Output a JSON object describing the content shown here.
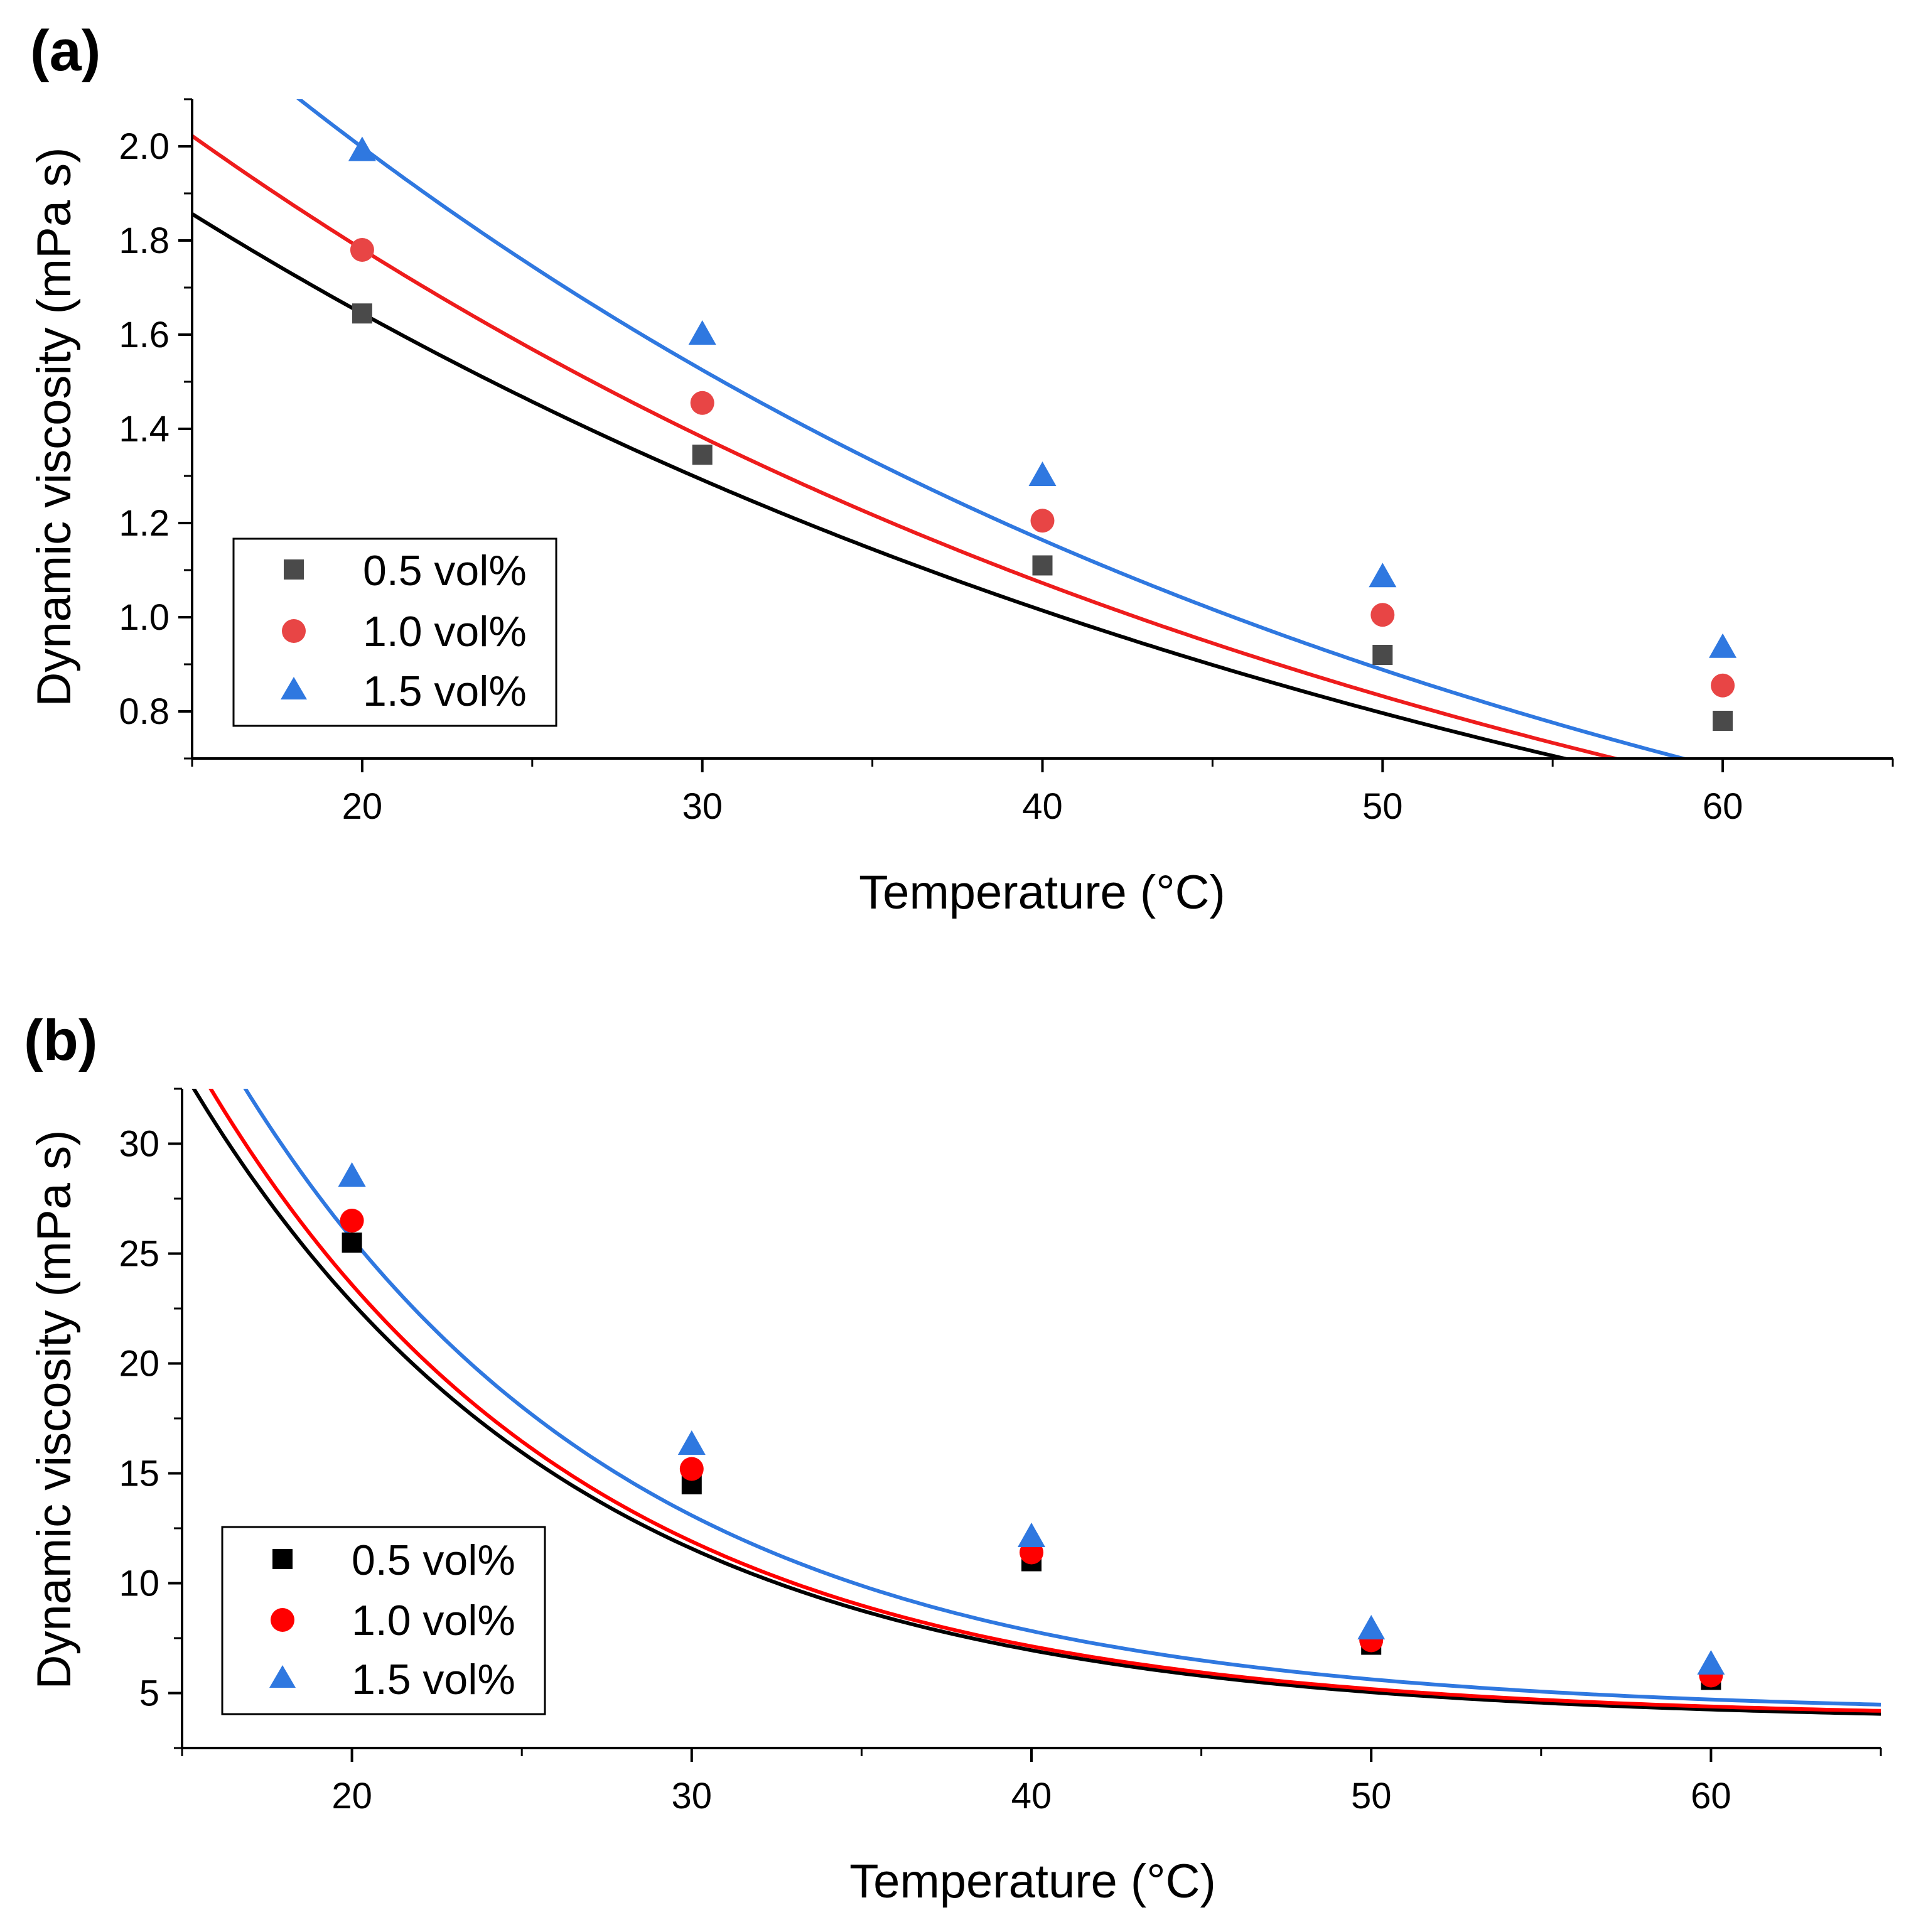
{
  "chart_data": [
    {
      "panel": "(a)",
      "type": "scatter",
      "xlabel": "Temperature (°C)",
      "ylabel": "Dynamic viscosity (mPa s)",
      "xlim": [
        15,
        65
      ],
      "ylim": [
        0.7,
        2.1
      ],
      "xticks": [
        20,
        30,
        40,
        50,
        60
      ],
      "xtick_labels": [
        "20",
        "30",
        "40",
        "50",
        "60"
      ],
      "xminor": [
        15,
        25,
        35,
        45,
        55,
        65
      ],
      "yticks": [
        0.8,
        1.0,
        1.2,
        1.4,
        1.6,
        1.8,
        2.0
      ],
      "ytick_labels": [
        "0.8",
        "1.0",
        "1.2",
        "1.4",
        "1.6",
        "1.8",
        "2.0"
      ],
      "yminor": [
        0.7,
        0.9,
        1.1,
        1.3,
        1.5,
        1.7,
        1.9,
        2.1
      ],
      "legend_position": "lower-left",
      "series": [
        {
          "name": "0.5 vol%",
          "marker": "square",
          "color": "#4a4a4a",
          "fit_color": "#000000",
          "x": [
            20,
            30,
            40,
            50,
            60
          ],
          "y": [
            1.645,
            1.345,
            1.11,
            0.92,
            0.78
          ],
          "fit": {
            "a": 2.668,
            "b": 0.02418
          }
        },
        {
          "name": "1.0 vol%",
          "marker": "circle",
          "color": "#e84545",
          "fit_color": "#ee1c1c",
          "x": [
            20,
            30,
            40,
            50,
            60
          ],
          "y": [
            1.78,
            1.455,
            1.205,
            1.005,
            0.855
          ],
          "fit": {
            "a": 2.958,
            "b": 0.02536
          }
        },
        {
          "name": "1.5 vol%",
          "marker": "triangle",
          "color": "#2f78e0",
          "fit_color": "#2f78e0",
          "x": [
            20,
            30,
            40,
            50,
            60
          ],
          "y": [
            1.99,
            1.6,
            1.3,
            1.085,
            0.935
          ],
          "fit": {
            "a": 3.429,
            "b": 0.02701
          }
        }
      ]
    },
    {
      "panel": "(b)",
      "type": "scatter",
      "xlabel": "Temperature (°C)",
      "ylabel": "Dynamic viscosity (mPa s)",
      "xlim": [
        15,
        65
      ],
      "ylim": [
        2.5,
        32.5
      ],
      "xticks": [
        20,
        30,
        40,
        50,
        60
      ],
      "xtick_labels": [
        "20",
        "30",
        "40",
        "50",
        "60"
      ],
      "xminor": [
        15,
        25,
        35,
        45,
        55,
        65
      ],
      "yticks": [
        5,
        10,
        15,
        20,
        25,
        30
      ],
      "ytick_labels": [
        "5",
        "10",
        "15",
        "20",
        "25",
        "30"
      ],
      "yminor": [
        2.5,
        7.5,
        12.5,
        17.5,
        22.5,
        27.5,
        32.5
      ],
      "legend_position": "lower-left",
      "series": [
        {
          "name": "0.5 vol%",
          "marker": "square",
          "color": "#000000",
          "fit_color": "#000000",
          "x": [
            20,
            30,
            40,
            50,
            60
          ],
          "y": [
            25.5,
            14.5,
            11.0,
            7.2,
            5.6
          ],
          "fit": {
            "a": 3.7,
            "c": 112.0,
            "b": 0.0885
          }
        },
        {
          "name": "1.0 vol%",
          "marker": "circle",
          "color": "#ff0000",
          "fit_color": "#ff0000",
          "x": [
            20,
            30,
            40,
            50,
            60
          ],
          "y": [
            26.5,
            15.2,
            11.4,
            7.4,
            5.8
          ],
          "fit": {
            "a": 3.84,
            "c": 118.5,
            "b": 0.0896
          }
        },
        {
          "name": "1.5 vol%",
          "marker": "triangle",
          "color": "#2f78e0",
          "fit_color": "#2f78e0",
          "x": [
            20,
            30,
            40,
            50,
            60
          ],
          "y": [
            28.5,
            16.3,
            12.1,
            7.9,
            6.3
          ],
          "fit": {
            "a": 4.05,
            "c": 124.0,
            "b": 0.0873
          }
        }
      ]
    }
  ]
}
